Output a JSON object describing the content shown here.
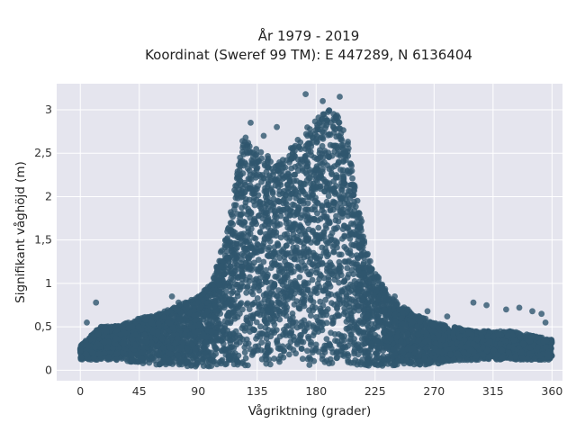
{
  "chart_data": {
    "type": "scatter",
    "title_lines": [
      "År 1979 - 2019",
      "Koordinat (Sweref 99 TM): E 447289, N 6136404"
    ],
    "xlabel": "Vågriktning (grader)",
    "ylabel": "Signifikant våghöjd (m)",
    "xlim": [
      -18,
      368
    ],
    "ylim": [
      -0.12,
      3.3
    ],
    "x_ticks": [
      0,
      45,
      90,
      135,
      180,
      225,
      270,
      315,
      360
    ],
    "x_tick_labels": [
      "0",
      "45",
      "90",
      "135",
      "180",
      "225",
      "270",
      "315",
      "360"
    ],
    "y_ticks": [
      0,
      0.5,
      1,
      1.5,
      2,
      2.5,
      3
    ],
    "y_tick_labels": [
      "0",
      "0,5",
      "1",
      "1,5",
      "2",
      "2,5",
      "3"
    ],
    "grid": true,
    "marker_color": "#2f566e",
    "plot_bg": "#e5e5ee",
    "envelope": {
      "x": [
        0,
        15,
        30,
        45,
        60,
        75,
        90,
        100,
        110,
        120,
        125,
        130,
        140,
        150,
        160,
        170,
        180,
        190,
        200,
        205,
        210,
        220,
        230,
        240,
        255,
        270,
        285,
        300,
        315,
        330,
        345,
        360
      ],
      "y_max": [
        0.28,
        0.5,
        0.52,
        0.6,
        0.65,
        0.75,
        0.85,
        1.0,
        1.5,
        2.3,
        2.75,
        2.6,
        2.5,
        2.4,
        2.55,
        2.75,
        2.9,
        3.0,
        2.9,
        2.6,
        2.1,
        1.3,
        1.0,
        0.8,
        0.65,
        0.55,
        0.5,
        0.45,
        0.45,
        0.45,
        0.4,
        0.35
      ],
      "y_min": [
        0.12,
        0.12,
        0.12,
        0.08,
        0.06,
        0.05,
        0.04,
        0.04,
        0.05,
        0.05,
        0.05,
        0.05,
        0.05,
        0.05,
        0.05,
        0.05,
        0.05,
        0.05,
        0.05,
        0.05,
        0.05,
        0.05,
        0.05,
        0.05,
        0.06,
        0.07,
        0.1,
        0.12,
        0.12,
        0.12,
        0.12,
        0.12
      ]
    },
    "outliers": [
      {
        "x": 12,
        "y": 0.78
      },
      {
        "x": 5,
        "y": 0.55
      },
      {
        "x": 40,
        "y": 0.5
      },
      {
        "x": 50,
        "y": 0.58
      },
      {
        "x": 70,
        "y": 0.85
      },
      {
        "x": 75,
        "y": 0.78
      },
      {
        "x": 300,
        "y": 0.78
      },
      {
        "x": 310,
        "y": 0.75
      },
      {
        "x": 325,
        "y": 0.7
      },
      {
        "x": 335,
        "y": 0.72
      },
      {
        "x": 345,
        "y": 0.68
      },
      {
        "x": 352,
        "y": 0.65
      },
      {
        "x": 355,
        "y": 0.55
      },
      {
        "x": 130,
        "y": 2.85
      },
      {
        "x": 172,
        "y": 3.18
      },
      {
        "x": 185,
        "y": 3.1
      },
      {
        "x": 198,
        "y": 3.15
      },
      {
        "x": 140,
        "y": 2.7
      },
      {
        "x": 150,
        "y": 2.8
      },
      {
        "x": 265,
        "y": 0.68
      },
      {
        "x": 280,
        "y": 0.62
      },
      {
        "x": 240,
        "y": 0.85
      },
      {
        "x": 250,
        "y": 0.7
      },
      {
        "x": 20,
        "y": 0.45
      }
    ]
  }
}
